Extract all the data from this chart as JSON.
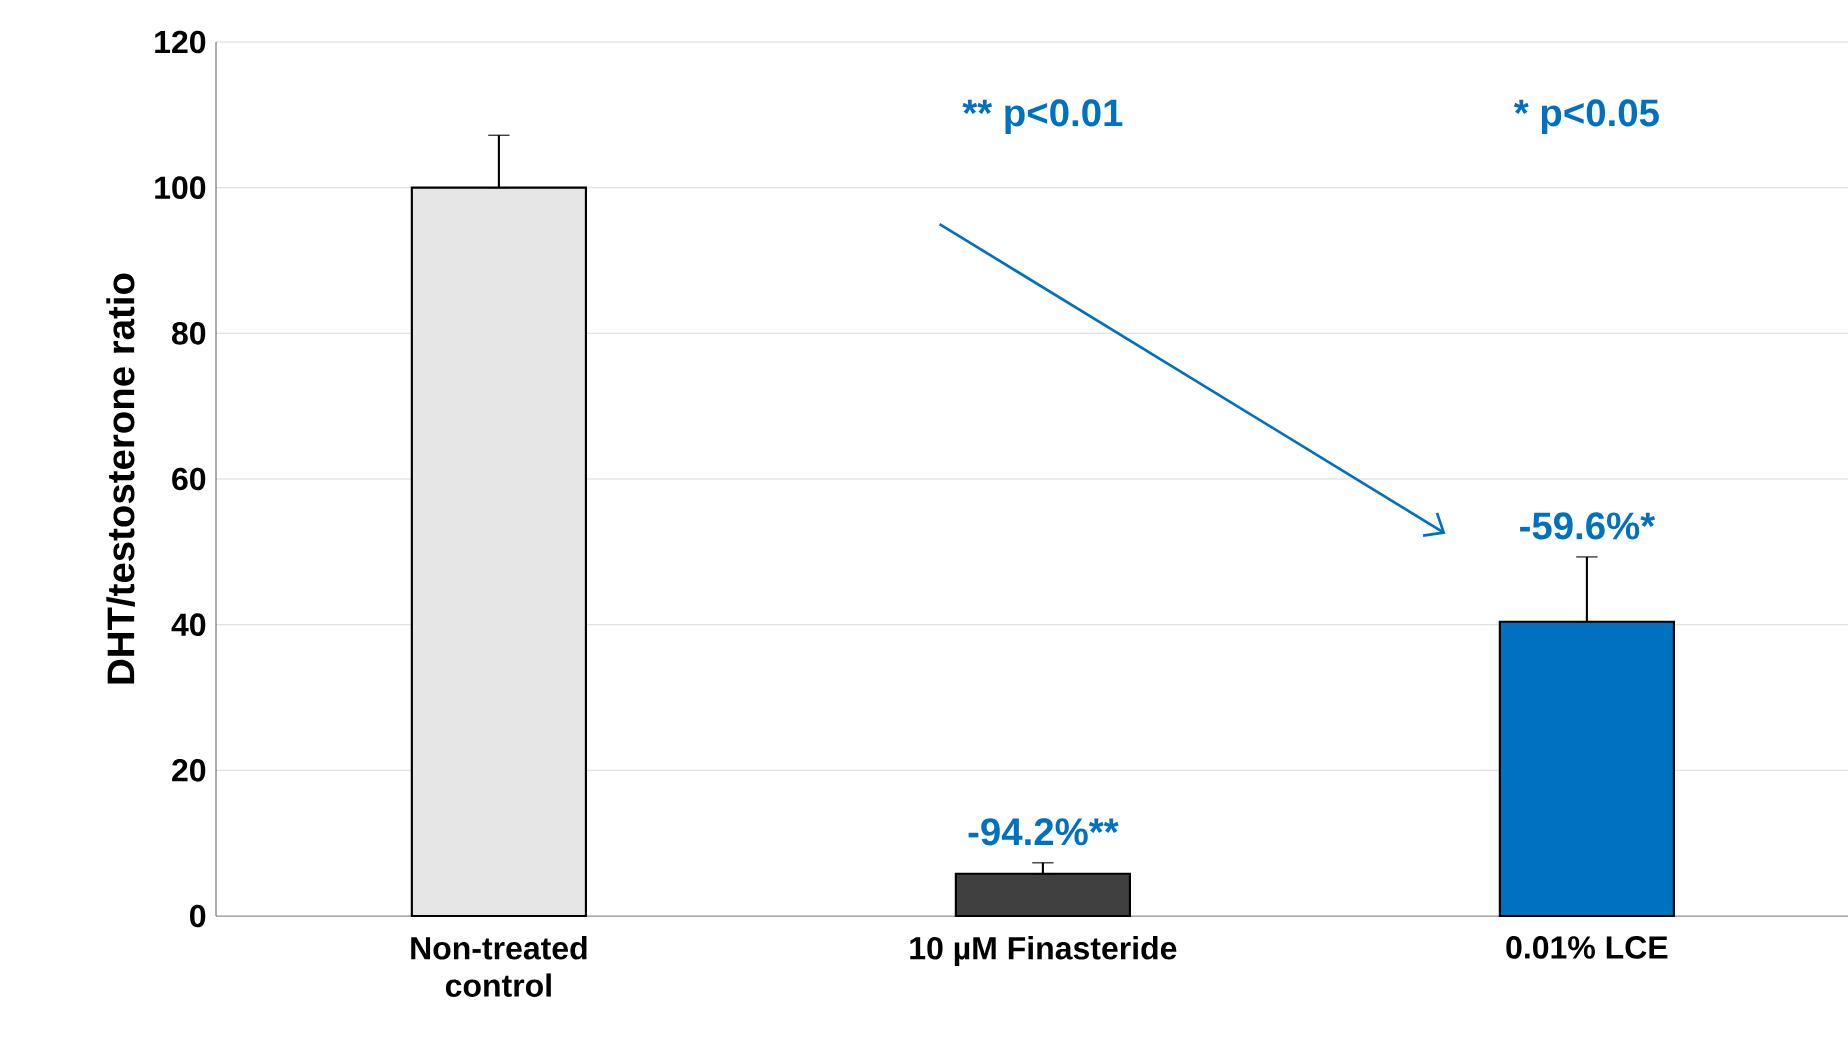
{
  "chart_data": {
    "type": "bar",
    "ylabel": "DHT/testosterone ratio",
    "categories": [
      "Non-treated control",
      "10 µM Finasteride",
      "0.01% LCE"
    ],
    "values": [
      100,
      5.8,
      40.4
    ],
    "colors": [
      "#e7e6e6",
      "#404040",
      "#0070c0"
    ],
    "errors": [
      [
        100,
        107.2
      ],
      [
        5.8,
        7.3
      ],
      [
        40.4,
        49.3
      ]
    ],
    "ylim": [
      0,
      120
    ],
    "yticks": [
      0,
      20,
      40,
      60,
      80,
      100,
      120
    ],
    "grid": "y",
    "annotations": [
      "** p<0.01",
      "* p<0.05",
      "-94.2%**",
      "-59.6%*"
    ]
  }
}
